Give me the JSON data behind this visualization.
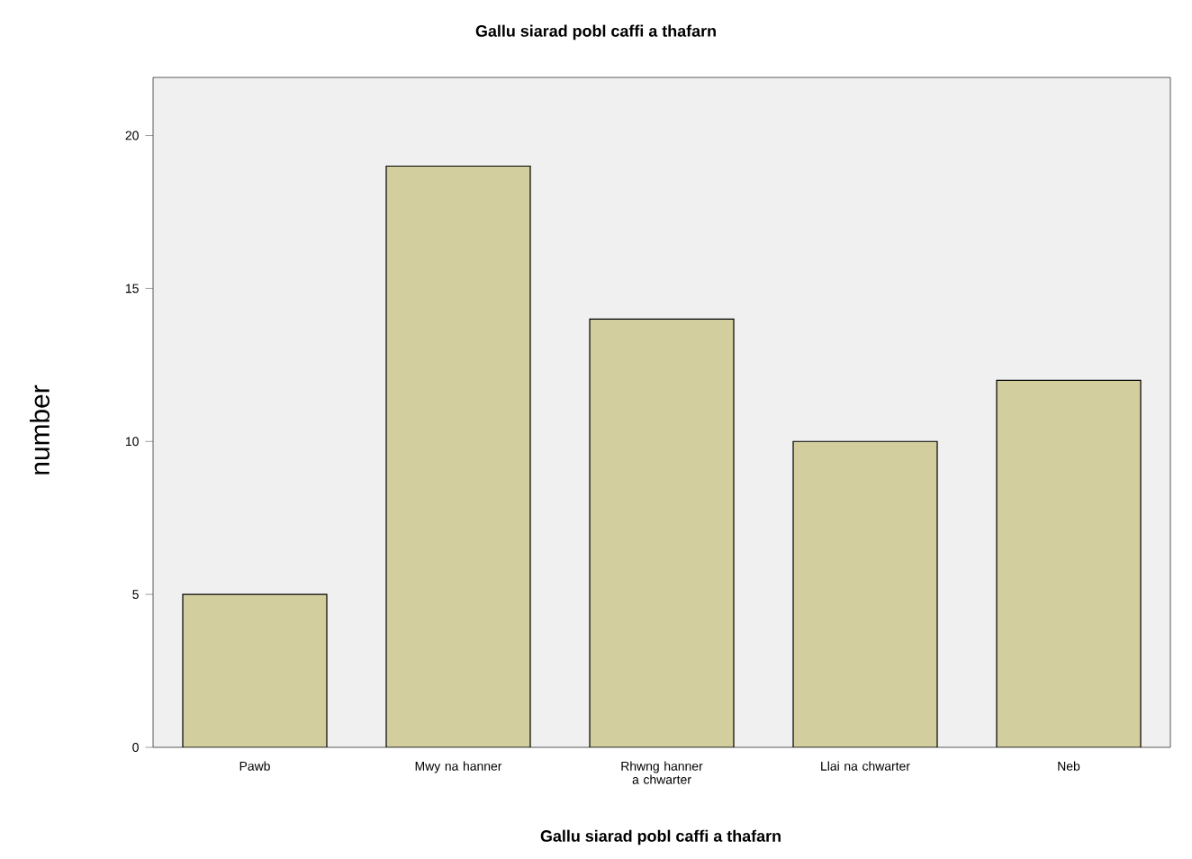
{
  "chart_data": {
    "type": "bar",
    "title": "Gallu siarad pobl caffi a thafarn",
    "xlabel": "Gallu siarad pobl caffi a thafarn",
    "ylabel": "number",
    "categories": [
      "Pawb",
      "Mwy na hanner",
      "Rhwng hanner a chwarter",
      "Llai na chwarter",
      "Neb"
    ],
    "values": [
      5,
      19,
      14,
      10,
      12
    ],
    "color": "#d3ce9d",
    "ylim": [
      0,
      21.9
    ],
    "yticks": [
      0,
      5,
      10,
      15,
      20
    ],
    "grid": false
  }
}
